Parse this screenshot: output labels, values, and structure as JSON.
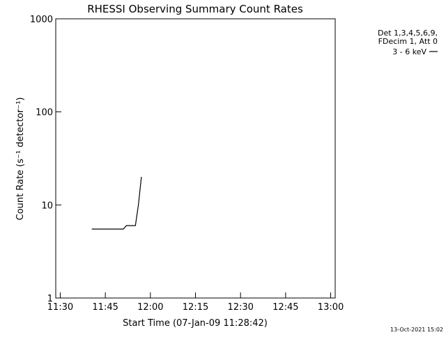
{
  "chart_data": {
    "type": "line",
    "title": "RHESSI Observing Summary Count Rates",
    "xlabel": "Start Time (07-Jan-09 11:28:42)",
    "ylabel": "Count Rate (s⁻¹ detector⁻¹)",
    "yscale": "log",
    "ylim": [
      1,
      1000
    ],
    "xlim_minutes": [
      -1.5,
      91.5
    ],
    "x_ticks": [
      {
        "minute": 0,
        "label": "11:30"
      },
      {
        "minute": 15,
        "label": "11:45"
      },
      {
        "minute": 30,
        "label": "12:00"
      },
      {
        "minute": 45,
        "label": "12:15"
      },
      {
        "minute": 60,
        "label": "12:30"
      },
      {
        "minute": 75,
        "label": "12:45"
      },
      {
        "minute": 90,
        "label": "13:00"
      }
    ],
    "y_ticks": [
      {
        "value": 1,
        "label": "1"
      },
      {
        "value": 10,
        "label": "10"
      },
      {
        "value": 100,
        "label": "100"
      },
      {
        "value": 1000,
        "label": "1000"
      }
    ],
    "legend_title": [
      "Det 1,3,4,5,6,9,",
      "FDecim 1, Att 0"
    ],
    "legend_position": "right",
    "footer": "13-Oct-2021 15:02",
    "series": [
      {
        "name": "3 - 6 keV",
        "color": "#000000",
        "x": [
          10.5,
          11,
          12,
          13,
          14,
          15,
          16,
          17,
          18,
          19,
          20,
          21,
          22,
          23,
          24,
          25,
          26,
          27
        ],
        "y": [
          5.5,
          5.5,
          5.5,
          5.5,
          5.5,
          5.5,
          5.5,
          5.5,
          5.5,
          5.5,
          5.5,
          5.5,
          6,
          6,
          6,
          6,
          10,
          20
        ]
      }
    ]
  }
}
